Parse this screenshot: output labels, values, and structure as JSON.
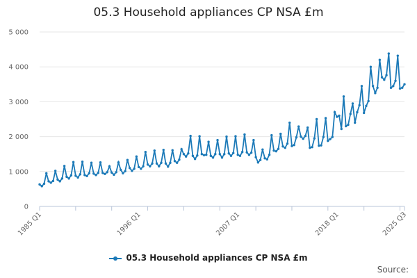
{
  "chart_data": {
    "type": "line",
    "title": "05.3 Household appliances CP NSA £m",
    "xlabel": "",
    "ylabel": "",
    "ylim": [
      0,
      5000
    ],
    "yticks": [
      0,
      1000,
      2000,
      3000,
      4000,
      5000
    ],
    "ytick_labels": [
      "0",
      "1 000",
      "2 000",
      "3 000",
      "4 000",
      "5 000"
    ],
    "xtick_labels": [
      "1985 Q1",
      "1996 Q1",
      "2007 Q1",
      "2018 Q1",
      "2025 Q3"
    ],
    "xtick_positions": [
      0,
      44,
      88,
      132,
      162
    ],
    "grid": true,
    "legend": "bottom",
    "color": "#1c7ab8",
    "series": [
      {
        "name": "05.3 Household appliances CP NSA £m",
        "values": [
          630,
          580,
          650,
          950,
          720,
          680,
          730,
          1020,
          770,
          720,
          800,
          1160,
          850,
          800,
          890,
          1270,
          880,
          830,
          920,
          1280,
          900,
          870,
          950,
          1250,
          940,
          900,
          960,
          1260,
          960,
          930,
          980,
          1150,
          970,
          910,
          980,
          1260,
          1050,
          950,
          1010,
          1330,
          1100,
          1020,
          1080,
          1430,
          1130,
          1080,
          1150,
          1560,
          1200,
          1150,
          1230,
          1600,
          1230,
          1150,
          1250,
          1620,
          1230,
          1140,
          1250,
          1610,
          1300,
          1250,
          1340,
          1640,
          1500,
          1430,
          1520,
          2020,
          1450,
          1360,
          1460,
          2010,
          1500,
          1470,
          1480,
          1850,
          1450,
          1400,
          1500,
          1900,
          1500,
          1400,
          1500,
          2000,
          1520,
          1450,
          1530,
          2010,
          1480,
          1450,
          1560,
          2060,
          1550,
          1480,
          1540,
          1900,
          1410,
          1260,
          1330,
          1630,
          1380,
          1350,
          1480,
          2040,
          1600,
          1580,
          1650,
          2080,
          1720,
          1680,
          1800,
          2400,
          1730,
          1760,
          1980,
          2290,
          2000,
          1940,
          2020,
          2260,
          1680,
          1700,
          1950,
          2500,
          1740,
          1750,
          1990,
          2530,
          1880,
          1930,
          1990,
          2700,
          2570,
          2600,
          2220,
          3150,
          2300,
          2340,
          2650,
          2950,
          2400,
          2700,
          2900,
          3450,
          2680,
          2880,
          3020,
          4000,
          3450,
          3250,
          3400,
          4200,
          3700,
          3630,
          3760,
          4380,
          3400,
          3450,
          3600,
          4320,
          3380,
          3400,
          3500
        ]
      }
    ]
  },
  "legend_label": "05.3 Household appliances CP NSA £m",
  "source_label": "Source:"
}
